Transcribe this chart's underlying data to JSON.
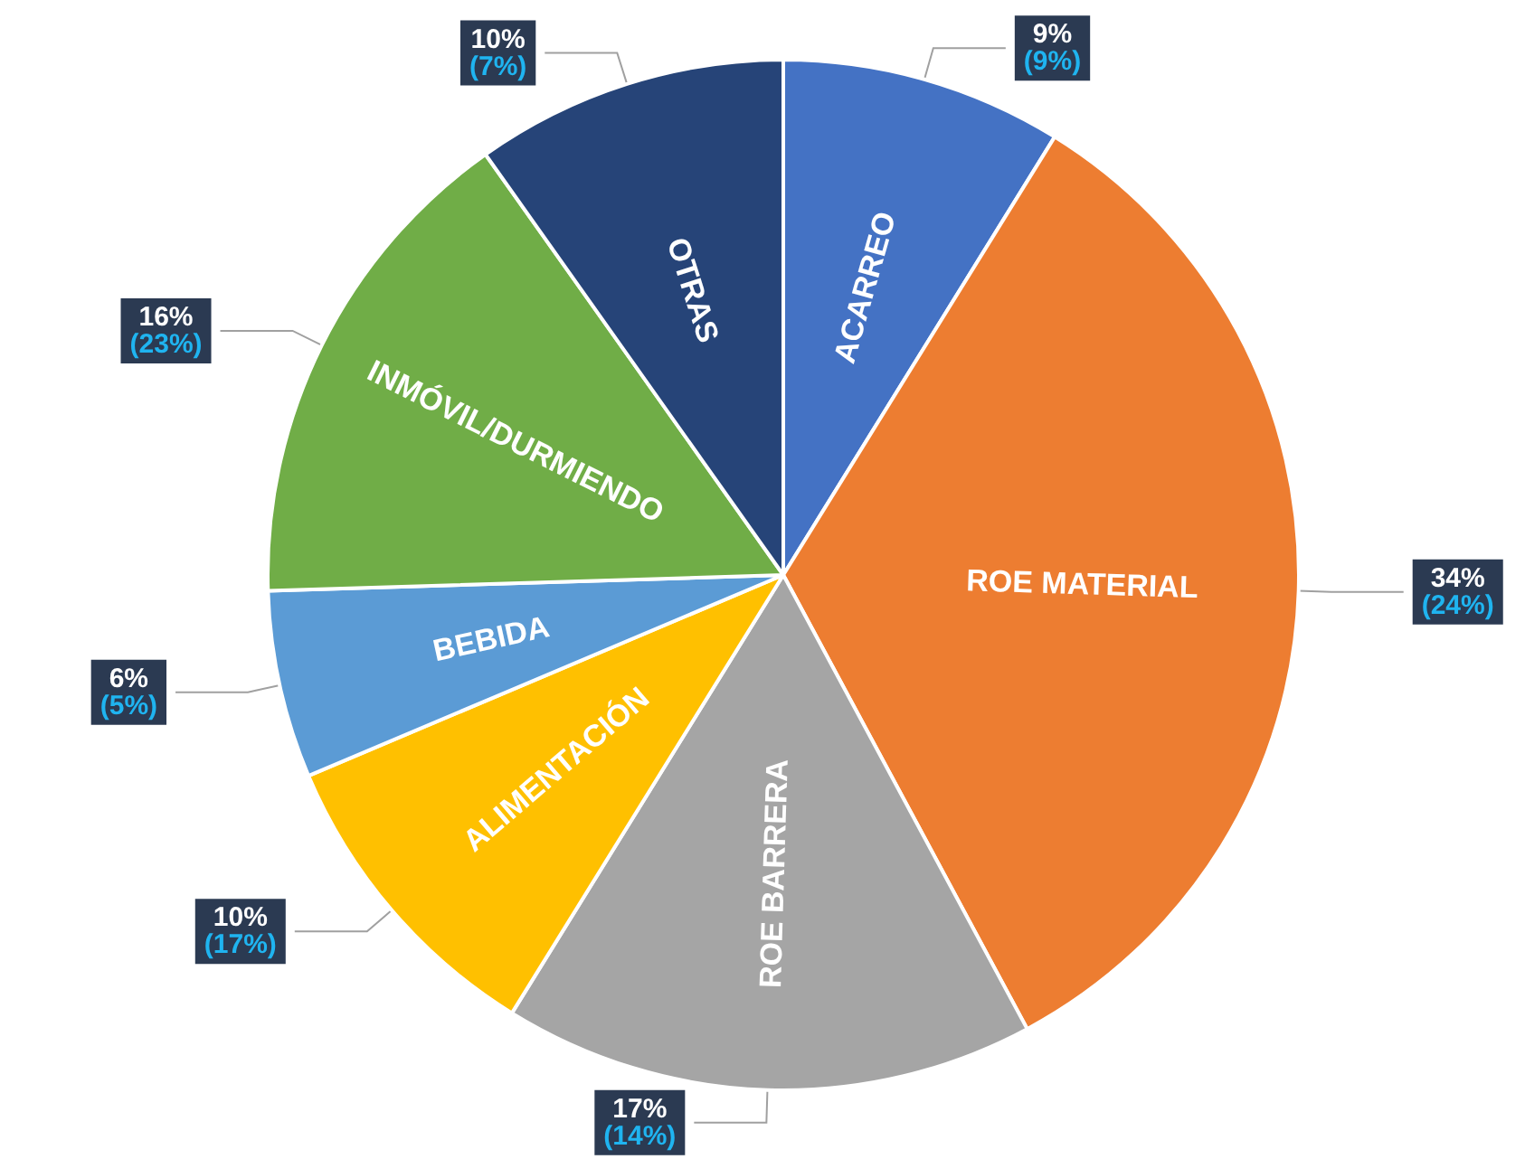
{
  "chart_data": {
    "type": "pie",
    "categories": [
      "ACARREO",
      "ROE MATERIAL",
      "ROE BARRERA",
      "ALIMENTACIÓN",
      "BEBIDA",
      "INMÓVIL/DURMIENDO",
      "OTRAS"
    ],
    "values": [
      9,
      34,
      17,
      10,
      6,
      16,
      10
    ],
    "colors": [
      "#4472c4",
      "#ed7d31",
      "#a5a5a5",
      "#ffc000",
      "#5b9bd5",
      "#70ad47",
      "#264478"
    ],
    "value_labels": [
      "9%\n(9%)",
      "34%\n(24%)",
      "17%\n(14%)",
      "10%\n(17%)",
      "6%\n(5%)",
      "16%\n(23%)",
      "10%\n(7%)"
    ]
  }
}
